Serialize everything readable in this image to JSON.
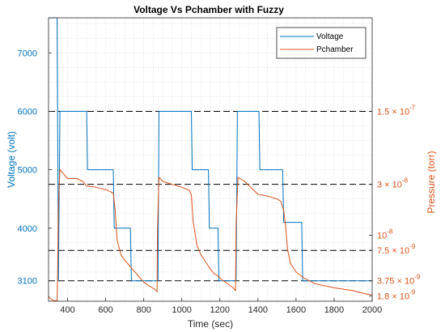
{
  "chart_data": {
    "type": "line",
    "title": "Voltage Vs Pchamber with Fuzzy",
    "xlabel": "Time (sec)",
    "ylabel_left": "Voltage (volt)",
    "ylabel_right": "Pressure (torr)",
    "xlim": [
      300,
      2000
    ],
    "ylim_left": [
      2750,
      7600
    ],
    "x_ticks": [
      "400",
      "600",
      "800",
      "1000",
      "1200",
      "1400",
      "1600",
      "1800",
      "2000"
    ],
    "y_ticks_left": [
      "3100",
      "4000",
      "5000",
      "6000",
      "7000"
    ],
    "y_ticks_right": [
      {
        "mantissa": "1.5",
        "sup": "-7",
        "voltage_level": 6000
      },
      {
        "mantissa": "3",
        "sup": "-8",
        "voltage_level": 4750
      },
      {
        "mantissa": "",
        "sup": "-8",
        "voltage_level": 3880
      },
      {
        "mantissa": "7.5",
        "sup": "-9",
        "voltage_level": 3620
      },
      {
        "mantissa": "3.75",
        "sup": "-9",
        "voltage_level": 3100
      },
      {
        "mantissa": "1.8",
        "sup": "-9",
        "voltage_level": 2840
      }
    ],
    "right_tick_base": "10",
    "right_tick_times": "×",
    "reference_lines_voltage": [
      6000,
      4750,
      3620,
      3100
    ],
    "grid": true,
    "legend_position": "top-right",
    "series": [
      {
        "name": "Voltage",
        "color": "#0072BD",
        "x": [
          300,
          345,
          352,
          360,
          500,
          505,
          640,
          645,
          730,
          735,
          870,
          875,
          880,
          1050,
          1055,
          1140,
          1145,
          1190,
          1195,
          1280,
          1285,
          1292,
          1405,
          1410,
          1530,
          1535,
          1630,
          1635,
          2000
        ],
        "y": [
          7600,
          7600,
          3100,
          6000,
          6000,
          5000,
          5000,
          4000,
          4000,
          3100,
          3100,
          3100,
          6000,
          6000,
          5000,
          5000,
          4000,
          4000,
          3100,
          3100,
          3100,
          6000,
          6000,
          5000,
          5000,
          4100,
          4100,
          3100,
          3100
        ]
      },
      {
        "name": "Pchamber",
        "color": "#D95319",
        "x": [
          300,
          310,
          330,
          345,
          348,
          352,
          360,
          400,
          450,
          480,
          500,
          550,
          610,
          640,
          650,
          660,
          680,
          700,
          720,
          740,
          760,
          780,
          800,
          820,
          840,
          860,
          870,
          872,
          880,
          900,
          950,
          1000,
          1040,
          1050,
          1060,
          1080,
          1100,
          1130,
          1150,
          1170,
          1190,
          1210,
          1240,
          1270,
          1282,
          1285,
          1295,
          1330,
          1400,
          1450,
          1500,
          1520,
          1535,
          1545,
          1555,
          1570,
          1600,
          1640,
          1700,
          1800,
          1900,
          1960,
          2000
        ],
        "y": [
          2840,
          2790,
          2760,
          2760,
          3300,
          4400,
          5000,
          4850,
          4850,
          4800,
          4720,
          4700,
          4650,
          4600,
          4300,
          3800,
          3550,
          3450,
          3380,
          3300,
          3230,
          3150,
          3080,
          3030,
          2990,
          2950,
          2910,
          3950,
          4870,
          4800,
          4750,
          4700,
          4650,
          4570,
          4100,
          3700,
          3550,
          3400,
          3300,
          3220,
          3180,
          3120,
          3050,
          2980,
          2930,
          4030,
          4870,
          4800,
          4580,
          4550,
          4500,
          4460,
          4300,
          4050,
          3650,
          3400,
          3250,
          3150,
          3050,
          2980,
          2930,
          2880,
          2860
        ]
      }
    ]
  }
}
